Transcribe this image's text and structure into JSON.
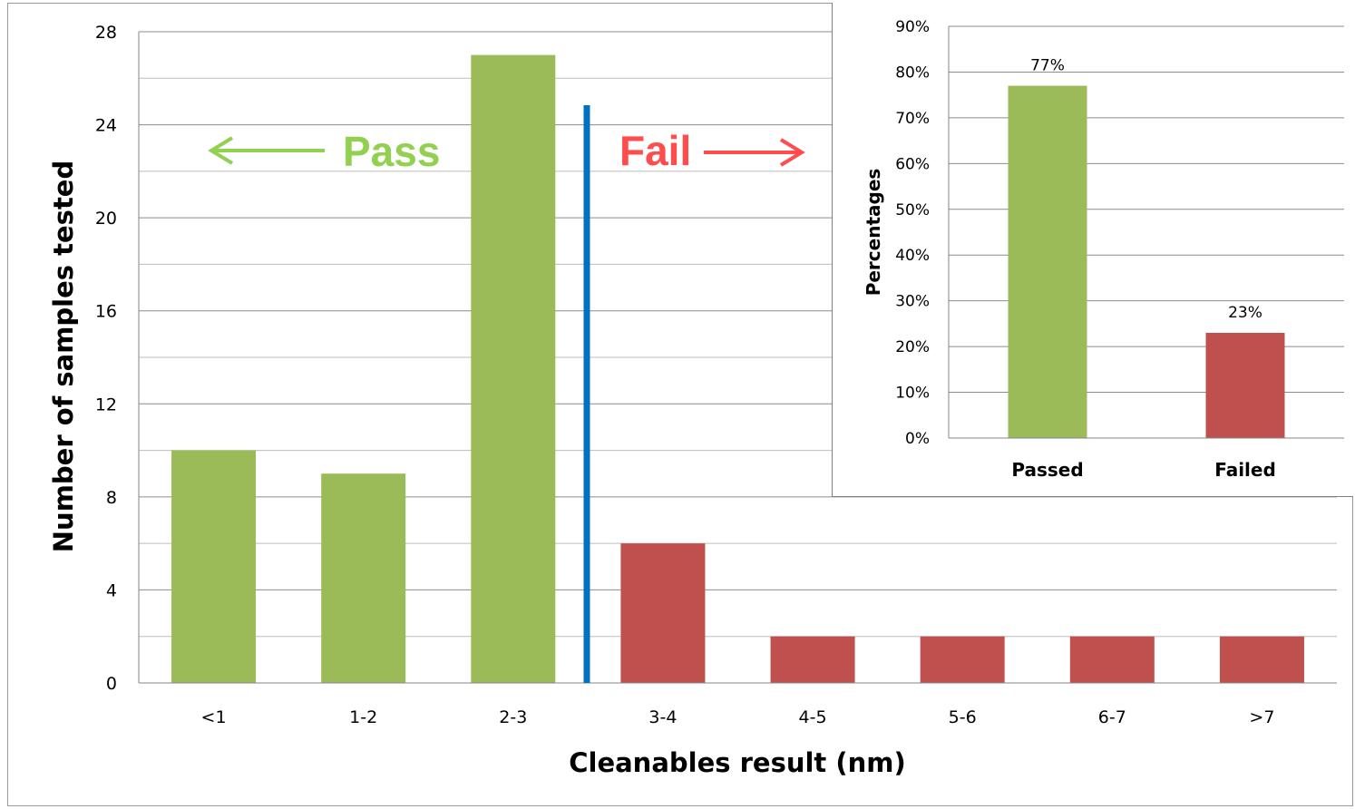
{
  "chart_data": [
    {
      "type": "bar",
      "categories": [
        "<1",
        "1-2",
        "2-3",
        "3-4",
        "4-5",
        "5-6",
        "6-7",
        ">7"
      ],
      "values": [
        10,
        9,
        27,
        6,
        2,
        2,
        2,
        2
      ],
      "bar_colors": [
        "#9bbb59",
        "#9bbb59",
        "#9bbb59",
        "#c0504d",
        "#c0504d",
        "#c0504d",
        "#c0504d",
        "#c0504d"
      ],
      "xlabel": "Cleanables result (nm)",
      "ylabel": "Number of samples tested",
      "ylim": [
        0,
        28
      ],
      "yticks": [
        "0",
        "4",
        "8",
        "12",
        "16",
        "20",
        "24",
        "28"
      ],
      "grid": true,
      "threshold_line": {
        "between": [
          "2-3",
          "3-4"
        ],
        "color": "#0070c0"
      },
      "annotations": {
        "pass": {
          "text": "Pass",
          "color": "#92d050",
          "arrow": "left"
        },
        "fail": {
          "text": "Fail",
          "color": "#ff4d4d",
          "arrow": "right"
        }
      }
    },
    {
      "type": "bar",
      "placement": "top-right inset",
      "categories": [
        "Passed",
        "Failed"
      ],
      "values": [
        77,
        23
      ],
      "data_labels": [
        "77%",
        "23%"
      ],
      "bar_colors": [
        "#9bbb59",
        "#c0504d"
      ],
      "ylabel": "Percentages",
      "ylim": [
        0,
        90
      ],
      "yticks": [
        "0%",
        "10%",
        "20%",
        "30%",
        "40%",
        "50%",
        "60%",
        "70%",
        "80%",
        "90%"
      ],
      "grid": true
    }
  ]
}
